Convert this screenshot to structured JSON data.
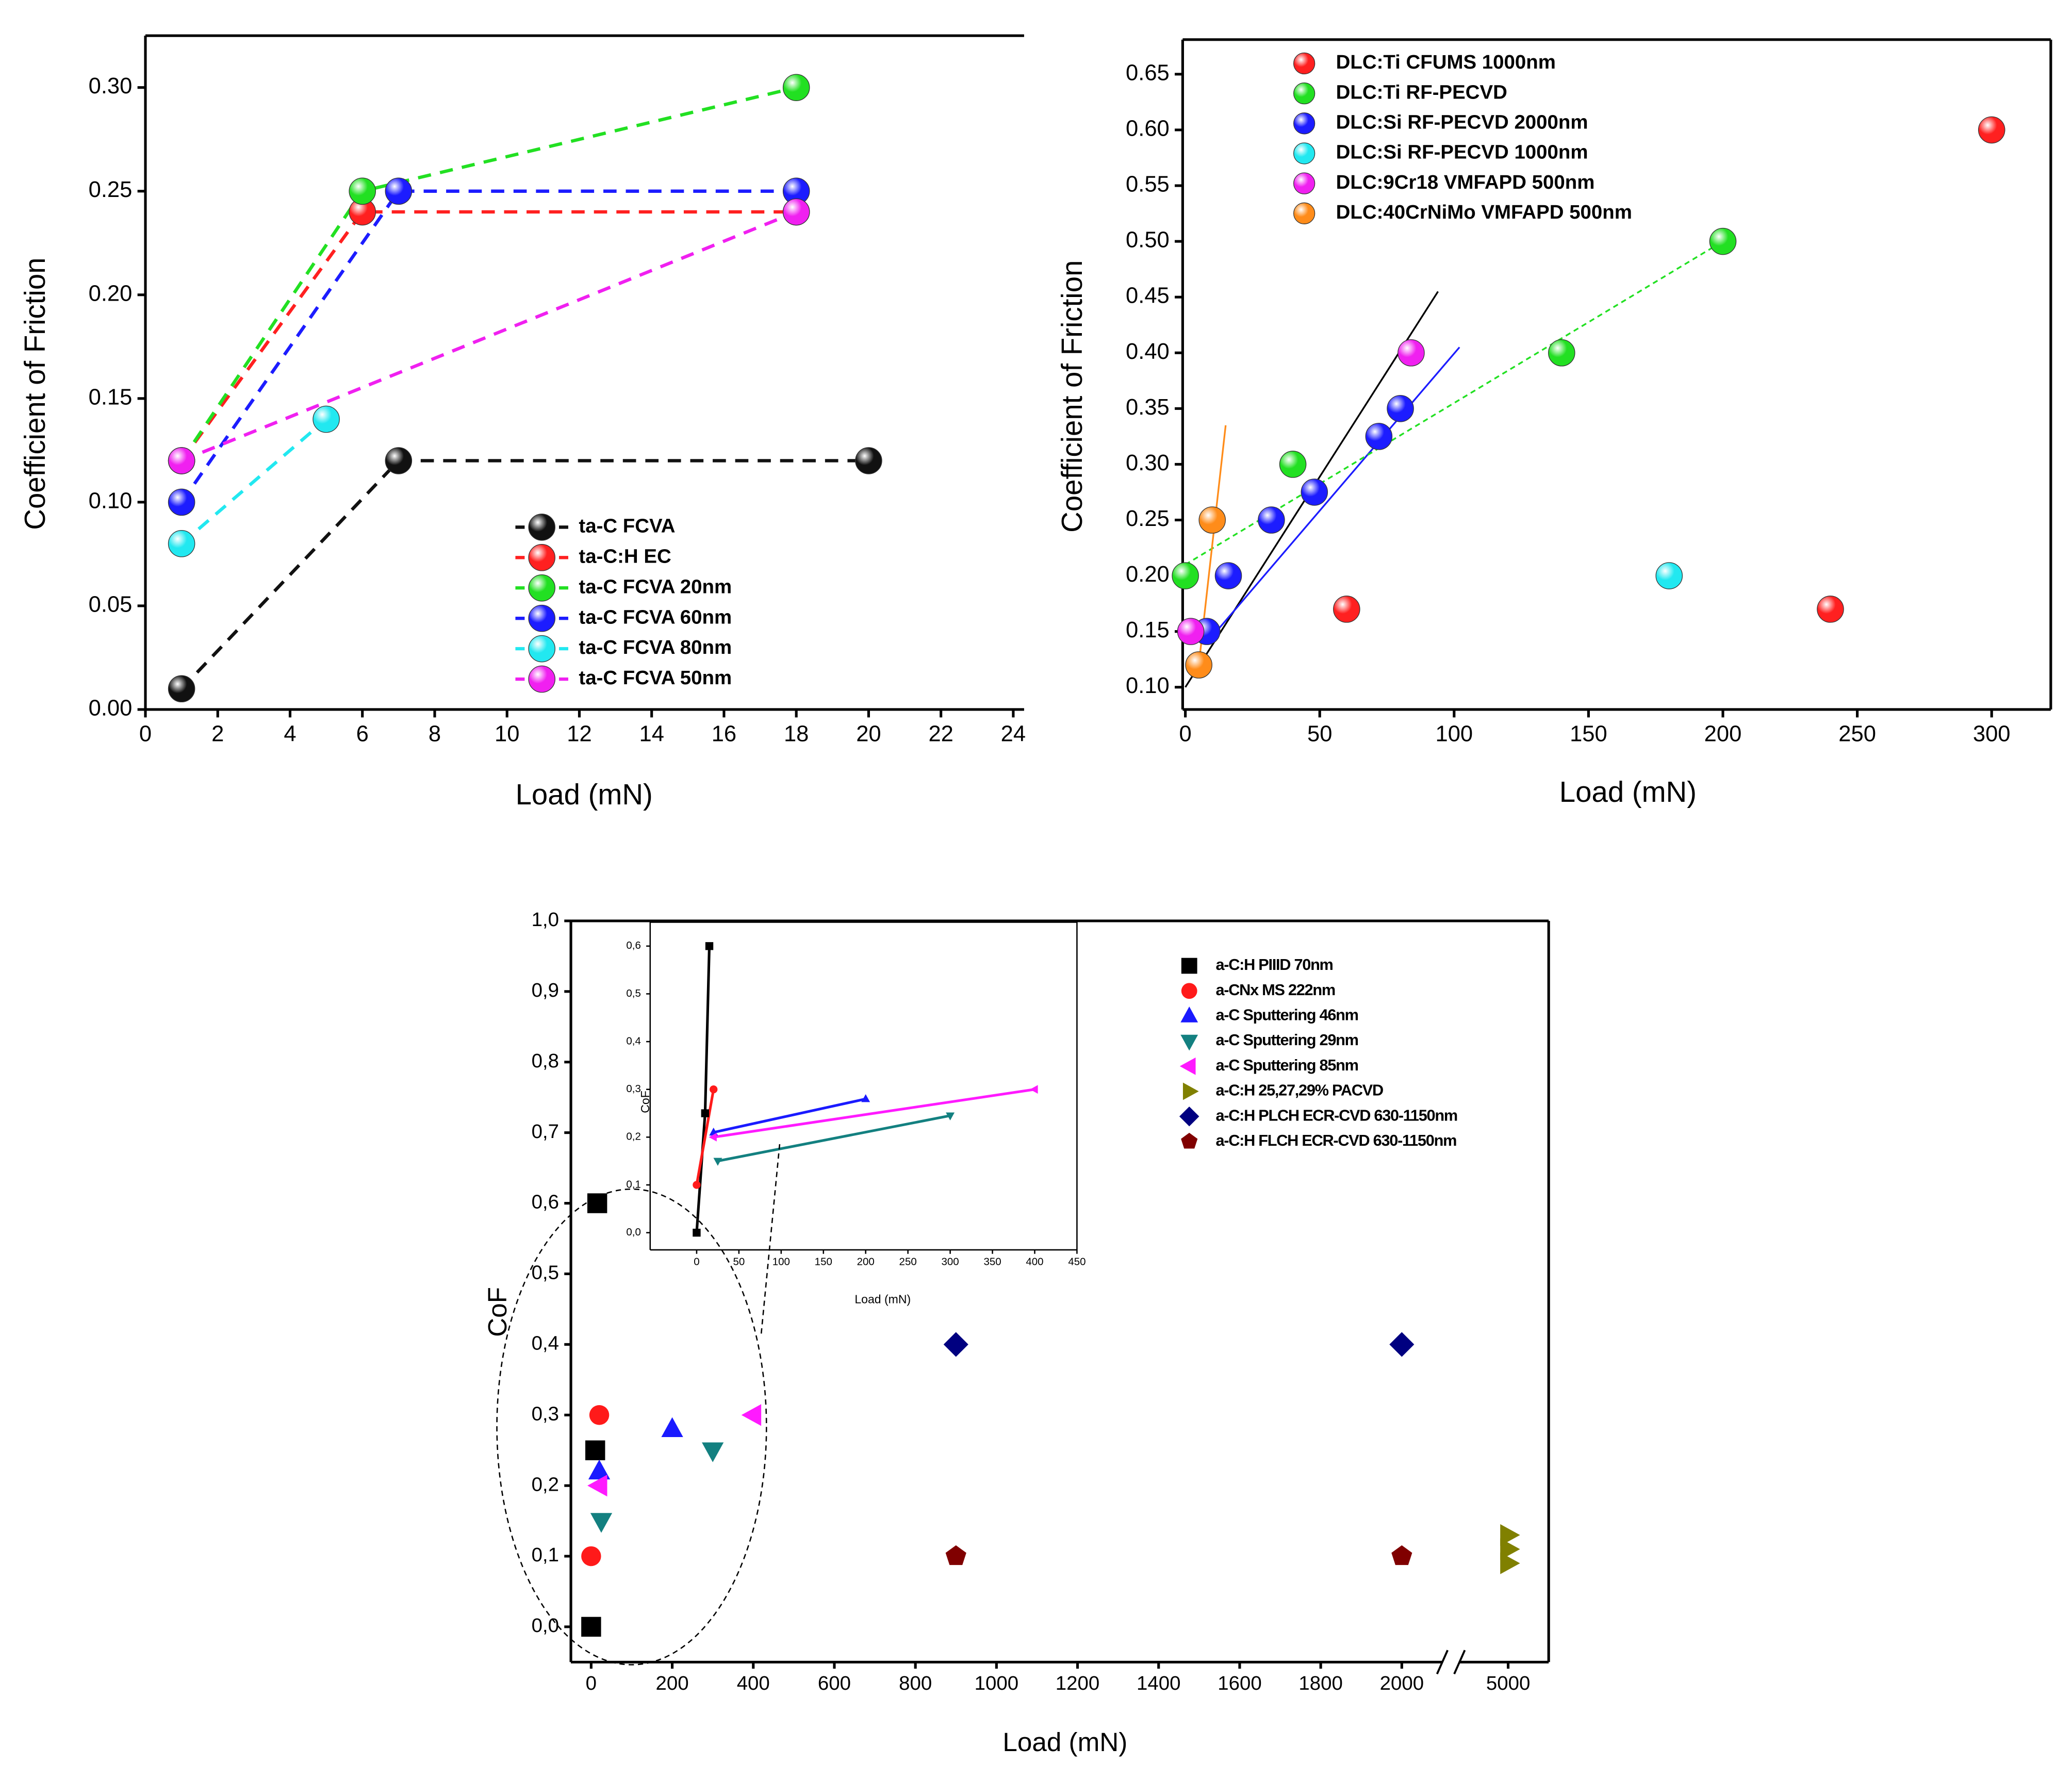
{
  "chart_data": [
    {
      "type": "line",
      "x_label": "Load (mN)",
      "y_label": "Coefficient of Friction",
      "xlim": [
        0,
        24.3
      ],
      "ylim": [
        0,
        0.325
      ],
      "xticks": [
        0,
        2,
        4,
        6,
        8,
        10,
        12,
        14,
        16,
        18,
        20,
        22,
        24
      ],
      "yticks": [
        {
          "value": 0,
          "label": "0.00"
        },
        0.05,
        {
          "value": 0.1,
          "label": "0.10"
        },
        0.15,
        {
          "value": 0.2,
          "label": "0.20"
        },
        0.25,
        {
          "value": 0.3,
          "label": "0.30"
        }
      ],
      "legend": "center right",
      "series": [
        {
          "name": "ta-C FCVA",
          "color": "#111111",
          "marker": "sphere",
          "linestyle": "dashed",
          "x": [
            1,
            7,
            20
          ],
          "values": [
            0.01,
            0.12,
            0.12
          ]
        },
        {
          "name": "ta-C:H EC",
          "color": "#ff2020",
          "marker": "sphere",
          "linestyle": "dashed",
          "x": [
            1,
            6,
            18
          ],
          "values": [
            0.12,
            0.24,
            0.24
          ]
        },
        {
          "name": "ta-C FCVA 20nm",
          "color": "#22e022",
          "marker": "sphere",
          "linestyle": "dashed",
          "x": [
            1,
            6,
            18
          ],
          "values": [
            0.12,
            0.25,
            0.3
          ]
        },
        {
          "name": "ta-C FCVA 60nm",
          "color": "#1c1cff",
          "marker": "sphere",
          "linestyle": "dashed",
          "x": [
            1,
            7,
            18
          ],
          "values": [
            0.1,
            0.25,
            0.25
          ]
        },
        {
          "name": "ta-C FCVA 80nm",
          "color": "#22e8f0",
          "marker": "sphere",
          "linestyle": "dashed",
          "x": [
            1,
            5
          ],
          "values": [
            0.08,
            0.14
          ]
        },
        {
          "name": "ta-C FCVA 50nm",
          "color": "#f020f0",
          "marker": "sphere",
          "linestyle": "dashed",
          "x": [
            1,
            18
          ],
          "values": [
            0.12,
            0.24
          ]
        }
      ]
    },
    {
      "type": "scatter",
      "x_label": "Load (mN)",
      "y_label": "Coefficient of Friction",
      "xlim": [
        -1,
        322
      ],
      "ylim": [
        0.08,
        0.681
      ],
      "xticks": [
        0,
        50,
        100,
        150,
        200,
        250,
        300
      ],
      "yticks": [
        {
          "value": 0.1,
          "label": "0.10"
        },
        0.15,
        {
          "value": 0.2,
          "label": "0.20"
        },
        0.25,
        {
          "value": 0.3,
          "label": "0.30"
        },
        0.35,
        {
          "value": 0.4,
          "label": "0.40"
        },
        0.45,
        {
          "value": 0.5,
          "label": "0.50"
        },
        0.55,
        {
          "value": 0.6,
          "label": "0.60"
        },
        0.65
      ],
      "legend": "upper left",
      "series": [
        {
          "name": "DLC:Ti CFUMS 1000nm",
          "color": "#ff2020",
          "marker": "sphere",
          "x": [
            60,
            240,
            300
          ],
          "values": [
            0.17,
            0.17,
            0.6
          ]
        },
        {
          "name": "DLC:Ti RF-PECVD",
          "color": "#22e022",
          "marker": "sphere",
          "x": [
            0,
            40,
            140,
            200
          ],
          "values": [
            0.2,
            0.3,
            0.4,
            0.5
          ]
        },
        {
          "name": "DLC:Si RF-PECVD 2000nm",
          "color": "#1c1cff",
          "marker": "sphere",
          "x": [
            8,
            16,
            32,
            48,
            72,
            80
          ],
          "values": [
            0.15,
            0.2,
            0.25,
            0.275,
            0.325,
            0.35
          ]
        },
        {
          "name": "DLC:Si RF-PECVD 1000nm",
          "color": "#22e8f0",
          "marker": "sphere",
          "x": [
            180
          ],
          "values": [
            0.2
          ]
        },
        {
          "name": "DLC:9Cr18 VMFAPD 500nm",
          "color": "#f020f0",
          "marker": "sphere",
          "x": [
            2,
            84
          ],
          "values": [
            0.15,
            0.4
          ]
        },
        {
          "name": "DLC:40CrNiMo VMFAPD 500nm",
          "color": "#ff8c1a",
          "marker": "sphere",
          "x": [
            5,
            10
          ],
          "values": [
            0.12,
            0.25
          ]
        }
      ],
      "fit_lines": [
        {
          "color": "#000000",
          "linestyle": "solid",
          "x": [
            0,
            94
          ],
          "values": [
            0.1,
            0.455
          ]
        },
        {
          "color": "#1c1cff",
          "linestyle": "solid",
          "x": [
            8,
            102
          ],
          "values": [
            0.14,
            0.405
          ]
        },
        {
          "color": "#22e022",
          "linestyle": "dashed",
          "x": [
            0,
            200
          ],
          "values": [
            0.21,
            0.5
          ]
        },
        {
          "color": "#ff8c1a",
          "linestyle": "solid",
          "x": [
            5,
            15
          ],
          "values": [
            0.12,
            0.335
          ]
        }
      ]
    },
    {
      "type": "scatter",
      "x_label": "Load (mN)",
      "y_label": "CoF",
      "xlim": [
        -50,
        5100
      ],
      "xbreak": [
        2100,
        4880
      ],
      "ylim": [
        -0.05,
        1.0
      ],
      "xticks": [
        0,
        200,
        400,
        600,
        800,
        1000,
        1200,
        1400,
        1600,
        1800,
        2000,
        5000
      ],
      "yticks": [
        {
          "value": 0,
          "label": "0,0"
        },
        {
          "value": 0.1,
          "label": "0,1"
        },
        {
          "value": 0.2,
          "label": "0,2"
        },
        {
          "value": 0.3,
          "label": "0,3"
        },
        {
          "value": 0.4,
          "label": "0,4"
        },
        {
          "value": 0.5,
          "label": "0,5"
        },
        {
          "value": 0.6,
          "label": "0,6"
        },
        {
          "value": 0.7,
          "label": "0,7"
        },
        {
          "value": 0.8,
          "label": "0,8"
        },
        {
          "value": 0.9,
          "label": "0,9"
        },
        {
          "value": 1.0,
          "label": "1,0"
        }
      ],
      "legend": "upper right",
      "series": [
        {
          "name": "a-C:H PIIID 70nm",
          "color": "#000000",
          "marker": "square",
          "x": [
            0,
            10,
            15
          ],
          "values": [
            0,
            0.25,
            0.6
          ]
        },
        {
          "name": "a-CNx MS 222nm",
          "color": "#ff1a1a",
          "marker": "circle",
          "x": [
            0,
            20
          ],
          "values": [
            0.1,
            0.3
          ]
        },
        {
          "name": "a-C Sputtering 46nm",
          "color": "#1a1aff",
          "marker": "up",
          "x": [
            20,
            200
          ],
          "values": [
            0.22,
            0.28
          ]
        },
        {
          "name": "a-C Sputtering 29nm",
          "color": "#138080",
          "marker": "down",
          "x": [
            25,
            300
          ],
          "values": [
            0.15,
            0.25
          ]
        },
        {
          "name": "a-C Sputtering 85nm",
          "color": "#ff1aff",
          "marker": "left",
          "x": [
            20,
            400
          ],
          "values": [
            0.2,
            0.3
          ]
        },
        {
          "name": "a-C:H 25,27,29% PACVD",
          "color": "#808000",
          "marker": "right",
          "x": [
            5000,
            5000,
            5000
          ],
          "values": [
            0.13,
            0.11,
            0.09
          ]
        },
        {
          "name": "a-C:H PLCH ECR-CVD 630-1150nm",
          "color": "#000080",
          "marker": "diamond",
          "x": [
            900,
            2000
          ],
          "values": [
            0.4,
            0.4
          ]
        },
        {
          "name": "a-C:H FLCH ECR-CVD 630-1150nm",
          "color": "#800000",
          "marker": "pentagon",
          "x": [
            900,
            2000
          ],
          "values": [
            0.1,
            0.1
          ]
        }
      ]
    },
    {
      "type": "line",
      "x_label": "Load (mN)",
      "y_label": "CoF",
      "xlim": [
        -55,
        450
      ],
      "ylim": [
        -0.036,
        0.65
      ],
      "xticks": [
        0,
        50,
        100,
        150,
        200,
        250,
        300,
        350,
        400,
        450
      ],
      "yticks": [
        {
          "value": 0,
          "label": "0,0"
        },
        {
          "value": 0.1,
          "label": "0,1"
        },
        {
          "value": 0.2,
          "label": "0,2"
        },
        {
          "value": 0.3,
          "label": "0,3"
        },
        {
          "value": 0.4,
          "label": "0,4"
        },
        {
          "value": 0.5,
          "label": "0,5"
        },
        {
          "value": 0.6,
          "label": "0,6"
        }
      ],
      "series": [
        {
          "color": "#000000",
          "marker": "square",
          "linestyle": "solid",
          "x": [
            0,
            10,
            15
          ],
          "values": [
            0,
            0.25,
            0.6
          ]
        },
        {
          "color": "#ff1a1a",
          "marker": "circle",
          "linestyle": "solid",
          "x": [
            0,
            20
          ],
          "values": [
            0.1,
            0.3
          ]
        },
        {
          "color": "#1a1aff",
          "marker": "up",
          "linestyle": "solid",
          "x": [
            20,
            200
          ],
          "values": [
            0.21,
            0.28
          ]
        },
        {
          "color": "#138080",
          "marker": "down",
          "linestyle": "solid",
          "x": [
            25,
            300
          ],
          "values": [
            0.15,
            0.245
          ]
        },
        {
          "color": "#ff1aff",
          "marker": "left",
          "linestyle": "solid",
          "x": [
            20,
            400
          ],
          "values": [
            0.2,
            0.3
          ]
        }
      ]
    }
  ]
}
